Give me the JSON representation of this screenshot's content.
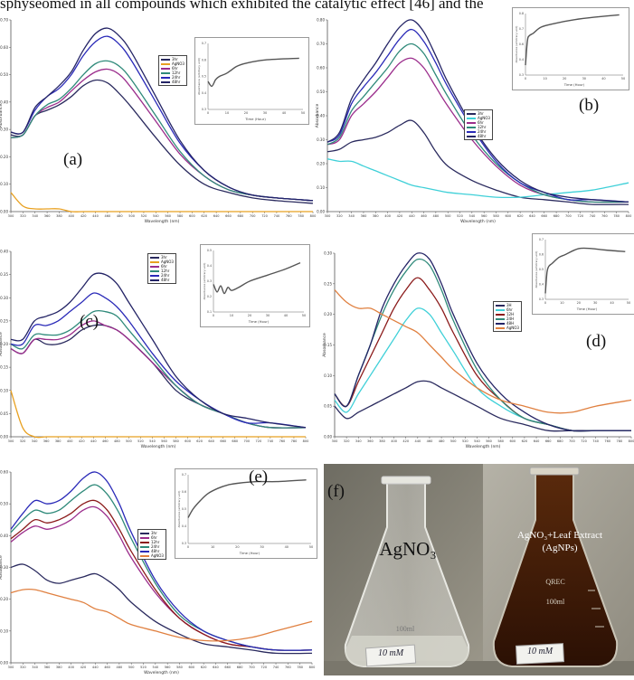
{
  "caption_fragment": "sphyseomed in all compounds which exhibited the catalytic effect [46] and the",
  "colors": {
    "c3h": "#2a2a5e",
    "c6h": "#2e2ea8",
    "c9h": "#9b2d8c",
    "c12h": "#2f8a7a",
    "c24h": "#2a2ab8",
    "c48h": "#242466",
    "agno3": "#e8a020",
    "cyan": "#3fd0d8",
    "red": "#8b1a1a",
    "orange": "#e08040"
  },
  "photo": {
    "label": "(f)",
    "left_text": "AgNO₃",
    "right_text_line1": "AgNO₃+Leaf Extract",
    "right_text_line2": "(AgNPs)",
    "left_tag": "10 mM",
    "right_tag": "10 mM",
    "flask_mark": "100ml",
    "brand": "QREC"
  },
  "chart_data": [
    {
      "panel": "(a)",
      "type": "line",
      "xlabel": "Wavelength (nm)",
      "ylabel": "Absorbance",
      "xlim": [
        300,
        800
      ],
      "ylim": [
        0,
        0.7
      ],
      "xticks": [
        300,
        320,
        340,
        360,
        380,
        400,
        420,
        440,
        460,
        480,
        500,
        520,
        540,
        560,
        580,
        600,
        620,
        640,
        660,
        680,
        700,
        720,
        740,
        760,
        780,
        800
      ],
      "yticks": [
        0,
        0.1,
        0.2,
        0.3,
        0.4,
        0.5,
        0.6,
        0.7
      ],
      "legend": [
        "3hr",
        "AgNO3",
        "6hr",
        "12hr",
        "24hr",
        "48hr"
      ],
      "x": [
        300,
        320,
        340,
        360,
        380,
        400,
        420,
        440,
        460,
        480,
        500,
        540,
        580,
        620,
        660,
        700,
        740,
        800
      ],
      "series": [
        {
          "name": "3hr",
          "values": [
            0.28,
            0.28,
            0.35,
            0.37,
            0.39,
            0.42,
            0.46,
            0.48,
            0.47,
            0.43,
            0.38,
            0.27,
            0.17,
            0.1,
            0.07,
            0.05,
            0.04,
            0.03
          ]
        },
        {
          "name": "AgNO3",
          "values": [
            0.07,
            0.02,
            0.01,
            0.01,
            0.01,
            0.0,
            0.0,
            0.0,
            0.0,
            0.0,
            0.0,
            0.0,
            0.0,
            0.0,
            0.0,
            0.0,
            0.0,
            0.0
          ]
        },
        {
          "name": "6hr",
          "values": [
            0.27,
            0.28,
            0.35,
            0.38,
            0.4,
            0.44,
            0.48,
            0.51,
            0.52,
            0.5,
            0.45,
            0.33,
            0.21,
            0.13,
            0.08,
            0.06,
            0.05,
            0.04
          ]
        },
        {
          "name": "12hr",
          "values": [
            0.27,
            0.28,
            0.35,
            0.39,
            0.41,
            0.45,
            0.5,
            0.54,
            0.55,
            0.53,
            0.48,
            0.35,
            0.22,
            0.13,
            0.08,
            0.06,
            0.05,
            0.04
          ]
        },
        {
          "name": "24hr",
          "values": [
            0.29,
            0.29,
            0.37,
            0.42,
            0.45,
            0.5,
            0.57,
            0.62,
            0.64,
            0.61,
            0.55,
            0.4,
            0.25,
            0.15,
            0.09,
            0.06,
            0.05,
            0.04
          ]
        },
        {
          "name": "48hr",
          "values": [
            0.29,
            0.29,
            0.38,
            0.42,
            0.46,
            0.51,
            0.59,
            0.65,
            0.67,
            0.64,
            0.58,
            0.42,
            0.26,
            0.15,
            0.09,
            0.06,
            0.05,
            0.04
          ]
        }
      ],
      "inset": {
        "xlabel": "Time (Hour)",
        "ylabel": "Absorbance (arbitrary unit)",
        "xlim": [
          0,
          50
        ],
        "ylim": [
          0.3,
          0.7
        ],
        "x": [
          0,
          2,
          4,
          6,
          10,
          15,
          20,
          30,
          48
        ],
        "y": [
          0.47,
          0.44,
          0.48,
          0.5,
          0.52,
          0.56,
          0.58,
          0.6,
          0.61
        ]
      }
    },
    {
      "panel": "(b)",
      "type": "line",
      "xlabel": "Wavelength (nm)",
      "ylabel": "Absorbance",
      "xlim": [
        300,
        800
      ],
      "ylim": [
        0,
        0.8
      ],
      "legend": [
        "3hr",
        "AgNO3",
        "6hr",
        "12hr",
        "24hr",
        "48hr"
      ],
      "x": [
        300,
        320,
        340,
        360,
        380,
        400,
        420,
        440,
        460,
        480,
        500,
        540,
        580,
        620,
        660,
        700,
        740,
        800
      ],
      "series": [
        {
          "name": "3hr",
          "values": [
            0.25,
            0.26,
            0.29,
            0.3,
            0.31,
            0.33,
            0.36,
            0.38,
            0.33,
            0.25,
            0.19,
            0.13,
            0.09,
            0.06,
            0.05,
            0.04,
            0.03,
            0.03
          ]
        },
        {
          "name": "AgNO3",
          "values": [
            0.22,
            0.21,
            0.21,
            0.19,
            0.17,
            0.15,
            0.13,
            0.11,
            0.1,
            0.09,
            0.08,
            0.07,
            0.06,
            0.06,
            0.07,
            0.08,
            0.09,
            0.12
          ]
        },
        {
          "name": "6hr",
          "values": [
            0.28,
            0.3,
            0.4,
            0.45,
            0.5,
            0.56,
            0.62,
            0.64,
            0.6,
            0.52,
            0.44,
            0.3,
            0.19,
            0.11,
            0.07,
            0.05,
            0.04,
            0.04
          ]
        },
        {
          "name": "12hr",
          "values": [
            0.28,
            0.31,
            0.42,
            0.48,
            0.54,
            0.6,
            0.67,
            0.7,
            0.66,
            0.57,
            0.48,
            0.32,
            0.2,
            0.12,
            0.07,
            0.05,
            0.04,
            0.04
          ]
        },
        {
          "name": "24hr",
          "values": [
            0.29,
            0.32,
            0.45,
            0.52,
            0.58,
            0.65,
            0.72,
            0.76,
            0.71,
            0.62,
            0.52,
            0.35,
            0.21,
            0.12,
            0.08,
            0.05,
            0.05,
            0.04
          ]
        },
        {
          "name": "48hr",
          "values": [
            0.29,
            0.33,
            0.47,
            0.55,
            0.62,
            0.7,
            0.77,
            0.8,
            0.75,
            0.65,
            0.54,
            0.36,
            0.22,
            0.13,
            0.08,
            0.06,
            0.05,
            0.04
          ]
        }
      ],
      "inset": {
        "xlabel": "Time (Hour)",
        "ylabel": "Absorbance (arbitrary unit)",
        "xlim": [
          0,
          50
        ],
        "ylim": [
          0.3,
          0.8
        ],
        "x": [
          0,
          1,
          2,
          4,
          8,
          15,
          25,
          35,
          48
        ],
        "y": [
          0.38,
          0.58,
          0.62,
          0.64,
          0.69,
          0.72,
          0.75,
          0.77,
          0.79
        ]
      }
    },
    {
      "panel": "(c)",
      "type": "line",
      "xlabel": "Wavelength (nm)",
      "ylabel": "Absorbance",
      "xlim": [
        300,
        800
      ],
      "ylim": [
        0,
        0.4
      ],
      "legend": [
        "3hr",
        "AgNO3",
        "6hr",
        "12hr",
        "24hr",
        "48hr"
      ],
      "x": [
        300,
        320,
        340,
        360,
        380,
        400,
        420,
        440,
        460,
        480,
        500,
        540,
        580,
        620,
        660,
        700,
        740,
        800
      ],
      "series": [
        {
          "name": "3hr",
          "values": [
            0.19,
            0.18,
            0.21,
            0.2,
            0.2,
            0.21,
            0.23,
            0.24,
            0.24,
            0.23,
            0.21,
            0.16,
            0.1,
            0.07,
            0.05,
            0.03,
            0.02,
            0.02
          ]
        },
        {
          "name": "AgNO3",
          "values": [
            0.1,
            0.02,
            0.0,
            0.0,
            0.0,
            0.0,
            0.0,
            0.0,
            0.0,
            0.0,
            0.0,
            0.0,
            0.0,
            0.0,
            0.0,
            0.0,
            0.0,
            0.0
          ]
        },
        {
          "name": "6hr",
          "values": [
            0.19,
            0.18,
            0.21,
            0.21,
            0.21,
            0.22,
            0.24,
            0.25,
            0.24,
            0.23,
            0.21,
            0.16,
            0.11,
            0.07,
            0.05,
            0.03,
            0.02,
            0.02
          ]
        },
        {
          "name": "12hr",
          "values": [
            0.2,
            0.19,
            0.22,
            0.22,
            0.22,
            0.23,
            0.25,
            0.27,
            0.27,
            0.26,
            0.23,
            0.17,
            0.11,
            0.07,
            0.05,
            0.03,
            0.02,
            0.02
          ]
        },
        {
          "name": "24hr",
          "values": [
            0.2,
            0.2,
            0.24,
            0.24,
            0.25,
            0.27,
            0.29,
            0.31,
            0.3,
            0.28,
            0.25,
            0.18,
            0.12,
            0.08,
            0.05,
            0.03,
            0.03,
            0.02
          ]
        },
        {
          "name": "48hr",
          "values": [
            0.21,
            0.21,
            0.25,
            0.26,
            0.27,
            0.29,
            0.32,
            0.35,
            0.35,
            0.33,
            0.29,
            0.21,
            0.13,
            0.08,
            0.05,
            0.04,
            0.03,
            0.02
          ]
        }
      ],
      "inset": {
        "xlabel": "Time (Hour)",
        "ylabel": "Absorbance (arbitrary unit)",
        "xlim": [
          0,
          50
        ],
        "ylim": [
          0.1,
          0.5
        ],
        "x": [
          0,
          2,
          4,
          6,
          8,
          10,
          14,
          20,
          30,
          40,
          48
        ],
        "y": [
          0.28,
          0.23,
          0.27,
          0.22,
          0.26,
          0.24,
          0.26,
          0.3,
          0.34,
          0.38,
          0.42
        ]
      }
    },
    {
      "panel": "(d)",
      "type": "line",
      "xlabel": "Wavelength (nm)",
      "ylabel": "Absorbance",
      "xlim": [
        300,
        800
      ],
      "ylim": [
        0,
        0.3
      ],
      "legend": [
        "3H",
        "6hr",
        "12H",
        "24H",
        "48H",
        "AgNO3"
      ],
      "x": [
        300,
        320,
        340,
        360,
        380,
        400,
        420,
        440,
        460,
        480,
        500,
        540,
        580,
        620,
        660,
        700,
        740,
        800
      ],
      "series": [
        {
          "name": "3H",
          "values": [
            0.05,
            0.03,
            0.04,
            0.05,
            0.06,
            0.07,
            0.08,
            0.09,
            0.09,
            0.08,
            0.07,
            0.05,
            0.03,
            0.02,
            0.01,
            0.01,
            0.01,
            0.01
          ]
        },
        {
          "name": "6hr",
          "values": [
            0.06,
            0.04,
            0.07,
            0.1,
            0.13,
            0.16,
            0.19,
            0.21,
            0.2,
            0.17,
            0.14,
            0.08,
            0.05,
            0.03,
            0.02,
            0.01,
            0.01,
            0.01
          ]
        },
        {
          "name": "12H",
          "values": [
            0.07,
            0.05,
            0.09,
            0.13,
            0.17,
            0.21,
            0.24,
            0.26,
            0.24,
            0.21,
            0.17,
            0.1,
            0.06,
            0.03,
            0.02,
            0.01,
            0.01,
            0.01
          ]
        },
        {
          "name": "24H",
          "values": [
            0.07,
            0.05,
            0.1,
            0.15,
            0.2,
            0.24,
            0.27,
            0.29,
            0.28,
            0.24,
            0.19,
            0.11,
            0.06,
            0.03,
            0.02,
            0.01,
            0.01,
            0.01
          ]
        },
        {
          "name": "48H",
          "values": [
            0.07,
            0.05,
            0.1,
            0.15,
            0.21,
            0.25,
            0.28,
            0.3,
            0.29,
            0.25,
            0.2,
            0.12,
            0.07,
            0.04,
            0.02,
            0.01,
            0.01,
            0.01
          ]
        },
        {
          "name": "AgNO3",
          "values": [
            0.24,
            0.22,
            0.21,
            0.21,
            0.2,
            0.19,
            0.18,
            0.17,
            0.15,
            0.13,
            0.11,
            0.08,
            0.06,
            0.05,
            0.04,
            0.04,
            0.05,
            0.06
          ]
        }
      ],
      "inset": {
        "xlabel": "Time (Hour)",
        "ylabel": "Absorbance (arbitrary unit)",
        "xlim": [
          0,
          50
        ],
        "ylim": [
          0.3,
          0.7
        ],
        "x": [
          0,
          1,
          2,
          4,
          8,
          12,
          20,
          28,
          36,
          48
        ],
        "y": [
          0.34,
          0.48,
          0.52,
          0.54,
          0.58,
          0.6,
          0.64,
          0.64,
          0.63,
          0.62
        ]
      }
    },
    {
      "panel": "(e)",
      "type": "line",
      "xlabel": "Wavelength (nm)",
      "ylabel": "Absorbance",
      "xlim": [
        300,
        800
      ],
      "ylim": [
        0,
        0.6
      ],
      "legend": [
        "3hr",
        "6hr",
        "12hr",
        "24hr",
        "48hr",
        "AgNO3"
      ],
      "x": [
        300,
        320,
        340,
        360,
        380,
        400,
        420,
        440,
        460,
        480,
        500,
        540,
        580,
        620,
        660,
        700,
        740,
        800
      ],
      "series": [
        {
          "name": "3hr",
          "values": [
            0.3,
            0.31,
            0.29,
            0.26,
            0.25,
            0.26,
            0.27,
            0.28,
            0.26,
            0.23,
            0.19,
            0.13,
            0.09,
            0.06,
            0.05,
            0.04,
            0.03,
            0.03
          ]
        },
        {
          "name": "6hr",
          "values": [
            0.38,
            0.41,
            0.43,
            0.42,
            0.43,
            0.45,
            0.48,
            0.49,
            0.46,
            0.4,
            0.33,
            0.22,
            0.14,
            0.09,
            0.06,
            0.05,
            0.04,
            0.04
          ]
        },
        {
          "name": "12hr",
          "values": [
            0.39,
            0.42,
            0.45,
            0.44,
            0.45,
            0.47,
            0.5,
            0.51,
            0.48,
            0.42,
            0.35,
            0.23,
            0.14,
            0.09,
            0.06,
            0.05,
            0.04,
            0.04
          ]
        },
        {
          "name": "24hr",
          "values": [
            0.41,
            0.45,
            0.48,
            0.47,
            0.48,
            0.51,
            0.54,
            0.56,
            0.53,
            0.47,
            0.39,
            0.25,
            0.15,
            0.1,
            0.07,
            0.05,
            0.04,
            0.04
          ]
        },
        {
          "name": "48hr",
          "values": [
            0.42,
            0.47,
            0.51,
            0.5,
            0.51,
            0.54,
            0.58,
            0.6,
            0.57,
            0.5,
            0.41,
            0.26,
            0.16,
            0.1,
            0.07,
            0.05,
            0.04,
            0.04
          ]
        },
        {
          "name": "AgNO3",
          "values": [
            0.22,
            0.23,
            0.23,
            0.22,
            0.21,
            0.2,
            0.19,
            0.17,
            0.16,
            0.14,
            0.12,
            0.1,
            0.08,
            0.07,
            0.07,
            0.08,
            0.1,
            0.13
          ]
        }
      ],
      "inset": {
        "xlabel": "Time (Hour)",
        "ylabel": "Absorbance (arbitrary unit)",
        "xlim": [
          0,
          50
        ],
        "ylim": [
          0.3,
          0.7
        ],
        "x": [
          0,
          2,
          5,
          8,
          12,
          16,
          20,
          28,
          36,
          48
        ],
        "y": [
          0.45,
          0.5,
          0.55,
          0.59,
          0.62,
          0.64,
          0.65,
          0.66,
          0.66,
          0.67
        ]
      }
    }
  ]
}
